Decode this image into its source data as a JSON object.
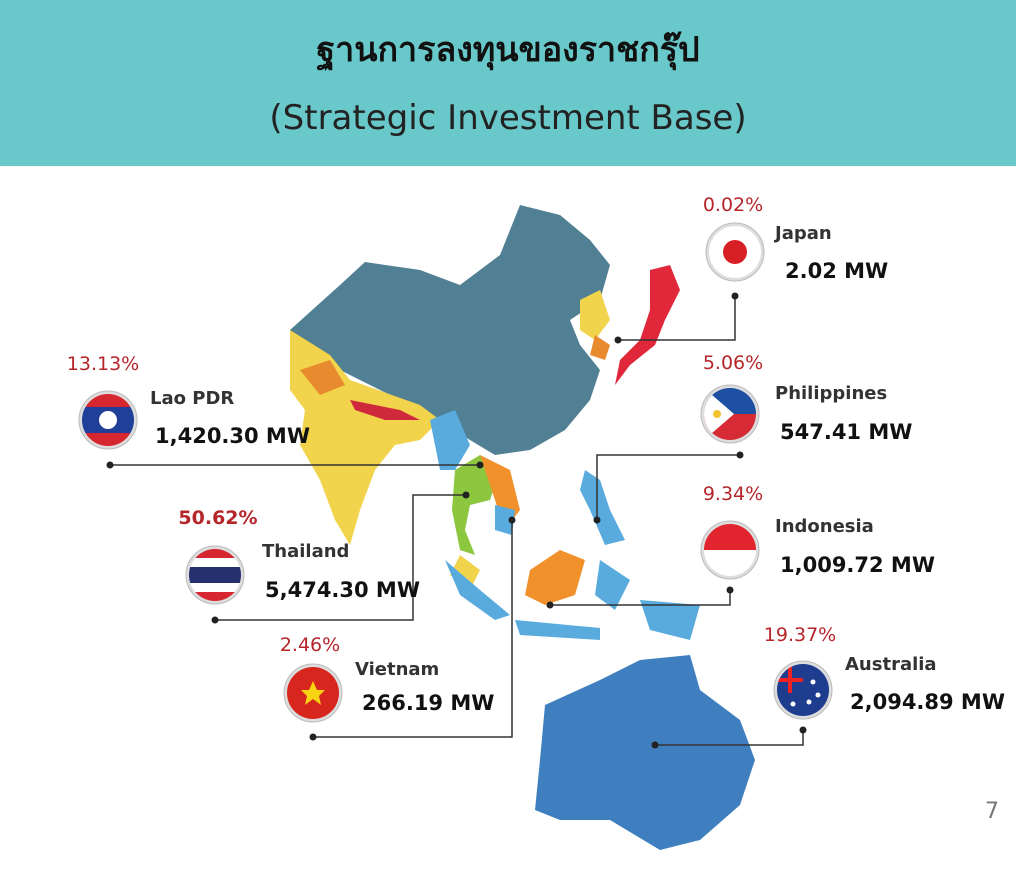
{
  "header": {
    "title": "ฐานการลงทุนของราชกรุ๊ป",
    "subtitle": "(Strategic Investment Base)"
  },
  "countries": [
    {
      "name": "Japan",
      "share": "0.02%",
      "capacity": "2.02 MW"
    },
    {
      "name": "Philippines",
      "share": "5.06%",
      "capacity": "547.41 MW"
    },
    {
      "name": "Indonesia",
      "share": "9.34%",
      "capacity": "1,009.72 MW"
    },
    {
      "name": "Australia",
      "share": "19.37%",
      "capacity": "2,094.89 MW"
    },
    {
      "name": "Lao PDR",
      "share": "13.13%",
      "capacity": "1,420.30 MW"
    },
    {
      "name": "Thailand",
      "share": "50.62%",
      "capacity": "5,474.30 MW"
    },
    {
      "name": "Vietnam",
      "share": "2.46%",
      "capacity": "266.19 MW"
    }
  ],
  "page_number": "7"
}
